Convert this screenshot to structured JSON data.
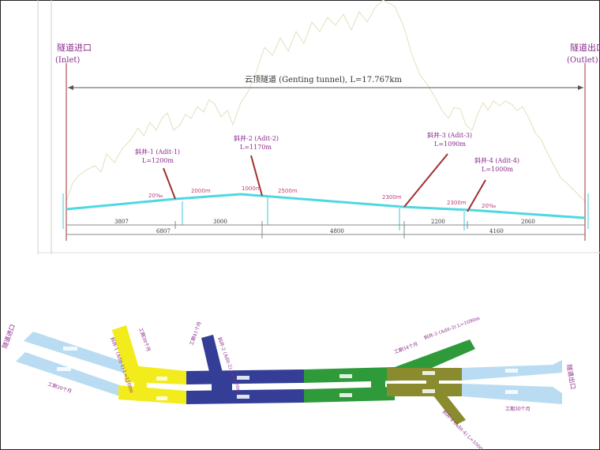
{
  "profile": {
    "inlet_cn": "隧道进口",
    "inlet_en": "(Inlet)",
    "outlet_cn": "隧道出口",
    "outlet_en": "(Outlet)",
    "tunnel_title": "云顶隧道 (Genting tunnel), L=17.767km",
    "adits": [
      {
        "name": "斜井-1 (Adit-1)",
        "length": "L=1200m"
      },
      {
        "name": "斜井-2 (Adit-2)",
        "length": "L=1170m"
      },
      {
        "name": "斜井-3 (Adit-3)",
        "length": "L=1090m"
      },
      {
        "name": "斜井-4 (Adit-4)",
        "length": "L=1000m"
      }
    ],
    "slopes": [
      "20‰",
      "2000m",
      "1000m",
      "2500m",
      "2300m",
      "2300m",
      "20‰"
    ],
    "lower_dims": [
      "3807",
      "3000",
      "2200",
      "2060"
    ],
    "upper_dims": [
      "6807",
      "4800",
      "4160"
    ]
  },
  "plan": {
    "inlet_label": "隧道进口",
    "outlet_label": "隧道出口",
    "adit1_label": "斜井-1 (Adit-1) L=1200m",
    "adit2_label": "斜井-2 (Adit-2) L=1170m",
    "adit3_label": "斜井-3 (Adit-3) L=1090m",
    "adit4_label": "斜井-4 (Adit-4) L=1000m",
    "work_label_1": "工期30个月",
    "work_label_2": "工期38个月",
    "work_label_3": "工期41个月",
    "work_label_4": "工期34个月",
    "work_label_5": "工期30个月"
  },
  "colors": {
    "tunnel_profile": "#4fd8e0",
    "adit_lines": "#a03030",
    "plan_light_blue": "#b9dcf2",
    "plan_yellow": "#f2ec1c",
    "plan_navy": "#343e96",
    "plan_green": "#2e9a3a",
    "plan_olive": "#8a8a2e"
  }
}
